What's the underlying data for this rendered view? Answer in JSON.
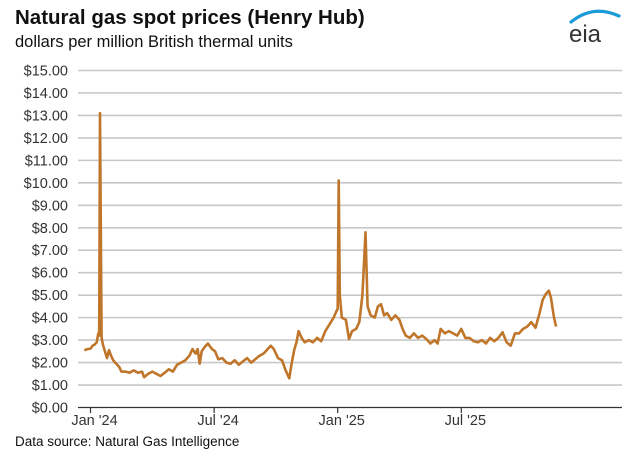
{
  "header": {
    "title": "Natural gas spot prices (Henry Hub)",
    "subtitle": "dollars per million British thermal units",
    "logo_text": "eia"
  },
  "footer": {
    "source": "Data source: Natural Gas Intelligence"
  },
  "colors": {
    "line": "#c0762a",
    "grid": "#c8c8c8",
    "axis": "#333333",
    "logo_arc": "#1a9ad6",
    "logo_text": "#333333"
  },
  "chart_data": {
    "type": "line",
    "title": "Natural gas spot prices (Henry Hub)",
    "subtitle": "dollars per million British thermal units",
    "xlabel": "",
    "ylabel": "dollars per million British thermal units",
    "ylim": [
      0,
      15
    ],
    "yticks": [
      "$0.00",
      "$1.00",
      "$2.00",
      "$3.00",
      "$4.00",
      "$5.00",
      "$6.00",
      "$7.00",
      "$8.00",
      "$9.00",
      "$10.00",
      "$11.00",
      "$12.00",
      "$13.00",
      "$14.00",
      "$15.00"
    ],
    "xticks": [
      {
        "label": "Jan '24",
        "month_index": 0
      },
      {
        "label": "Jul '24",
        "month_index": 6
      },
      {
        "label": "Jan '25",
        "month_index": 12
      },
      {
        "label": "Jul '25",
        "month_index": 18
      }
    ],
    "grid": true,
    "legend": "none",
    "source": "Data source: Natural Gas Intelligence",
    "series": [
      {
        "name": "Henry Hub spot price",
        "x_unit": "months since Jan 1 2024",
        "points": [
          [
            -0.3,
            2.55
          ],
          [
            -0.15,
            2.6
          ],
          [
            0.0,
            2.62
          ],
          [
            0.1,
            2.75
          ],
          [
            0.2,
            2.8
          ],
          [
            0.3,
            2.9
          ],
          [
            0.38,
            3.3
          ],
          [
            0.42,
            3.2
          ],
          [
            0.46,
            13.1
          ],
          [
            0.5,
            8.0
          ],
          [
            0.54,
            3.1
          ],
          [
            0.6,
            2.8
          ],
          [
            0.7,
            2.5
          ],
          [
            0.8,
            2.2
          ],
          [
            0.9,
            2.55
          ],
          [
            1.0,
            2.3
          ],
          [
            1.1,
            2.1
          ],
          [
            1.2,
            2.0
          ],
          [
            1.3,
            1.9
          ],
          [
            1.4,
            1.8
          ],
          [
            1.5,
            1.6
          ],
          [
            1.7,
            1.6
          ],
          [
            1.9,
            1.55
          ],
          [
            2.1,
            1.65
          ],
          [
            2.3,
            1.55
          ],
          [
            2.5,
            1.6
          ],
          [
            2.6,
            1.35
          ],
          [
            2.8,
            1.5
          ],
          [
            3.0,
            1.6
          ],
          [
            3.2,
            1.5
          ],
          [
            3.4,
            1.4
          ],
          [
            3.6,
            1.55
          ],
          [
            3.8,
            1.7
          ],
          [
            4.0,
            1.6
          ],
          [
            4.2,
            1.9
          ],
          [
            4.4,
            2.0
          ],
          [
            4.6,
            2.1
          ],
          [
            4.8,
            2.3
          ],
          [
            4.95,
            2.6
          ],
          [
            5.1,
            2.4
          ],
          [
            5.2,
            2.6
          ],
          [
            5.3,
            1.95
          ],
          [
            5.4,
            2.5
          ],
          [
            5.55,
            2.7
          ],
          [
            5.7,
            2.85
          ],
          [
            5.9,
            2.6
          ],
          [
            6.05,
            2.5
          ],
          [
            6.2,
            2.15
          ],
          [
            6.4,
            2.2
          ],
          [
            6.6,
            2.0
          ],
          [
            6.8,
            1.95
          ],
          [
            7.0,
            2.1
          ],
          [
            7.2,
            1.9
          ],
          [
            7.4,
            2.05
          ],
          [
            7.6,
            2.2
          ],
          [
            7.8,
            2.0
          ],
          [
            8.0,
            2.15
          ],
          [
            8.2,
            2.3
          ],
          [
            8.4,
            2.4
          ],
          [
            8.6,
            2.6
          ],
          [
            8.75,
            2.75
          ],
          [
            8.9,
            2.6
          ],
          [
            9.1,
            2.2
          ],
          [
            9.3,
            2.1
          ],
          [
            9.45,
            1.7
          ],
          [
            9.55,
            1.5
          ],
          [
            9.65,
            1.3
          ],
          [
            9.75,
            1.9
          ],
          [
            9.9,
            2.6
          ],
          [
            10.0,
            2.9
          ],
          [
            10.1,
            3.4
          ],
          [
            10.25,
            3.1
          ],
          [
            10.4,
            2.9
          ],
          [
            10.6,
            3.0
          ],
          [
            10.8,
            2.9
          ],
          [
            11.0,
            3.1
          ],
          [
            11.2,
            2.95
          ],
          [
            11.4,
            3.4
          ],
          [
            11.6,
            3.7
          ],
          [
            11.8,
            4.0
          ],
          [
            11.9,
            4.2
          ],
          [
            12.0,
            4.4
          ],
          [
            12.05,
            10.1
          ],
          [
            12.1,
            5.0
          ],
          [
            12.2,
            4.0
          ],
          [
            12.4,
            3.9
          ],
          [
            12.55,
            3.05
          ],
          [
            12.7,
            3.4
          ],
          [
            12.9,
            3.5
          ],
          [
            13.05,
            3.8
          ],
          [
            13.2,
            5.0
          ],
          [
            13.35,
            7.8
          ],
          [
            13.45,
            4.5
          ],
          [
            13.6,
            4.1
          ],
          [
            13.8,
            4.0
          ],
          [
            13.95,
            4.5
          ],
          [
            14.1,
            4.6
          ],
          [
            14.25,
            4.1
          ],
          [
            14.4,
            4.2
          ],
          [
            14.6,
            3.9
          ],
          [
            14.8,
            4.1
          ],
          [
            15.0,
            3.9
          ],
          [
            15.15,
            3.5
          ],
          [
            15.3,
            3.2
          ],
          [
            15.5,
            3.1
          ],
          [
            15.7,
            3.3
          ],
          [
            15.9,
            3.1
          ],
          [
            16.1,
            3.2
          ],
          [
            16.3,
            3.05
          ],
          [
            16.5,
            2.85
          ],
          [
            16.7,
            3.0
          ],
          [
            16.85,
            2.85
          ],
          [
            17.0,
            3.5
          ],
          [
            17.2,
            3.3
          ],
          [
            17.4,
            3.4
          ],
          [
            17.6,
            3.3
          ],
          [
            17.8,
            3.2
          ],
          [
            18.0,
            3.5
          ],
          [
            18.2,
            3.1
          ],
          [
            18.4,
            3.1
          ],
          [
            18.6,
            2.95
          ],
          [
            18.8,
            2.9
          ],
          [
            19.0,
            3.0
          ],
          [
            19.2,
            2.85
          ],
          [
            19.4,
            3.1
          ],
          [
            19.6,
            2.95
          ],
          [
            19.8,
            3.1
          ],
          [
            20.0,
            3.35
          ],
          [
            20.2,
            2.9
          ],
          [
            20.4,
            2.75
          ],
          [
            20.6,
            3.3
          ],
          [
            20.8,
            3.3
          ],
          [
            21.0,
            3.5
          ],
          [
            21.2,
            3.6
          ],
          [
            21.4,
            3.8
          ],
          [
            21.6,
            3.55
          ],
          [
            21.8,
            4.2
          ],
          [
            21.95,
            4.8
          ],
          [
            22.1,
            5.05
          ],
          [
            22.25,
            5.2
          ],
          [
            22.35,
            4.9
          ],
          [
            22.5,
            4.0
          ],
          [
            22.6,
            3.6
          ]
        ]
      }
    ]
  }
}
